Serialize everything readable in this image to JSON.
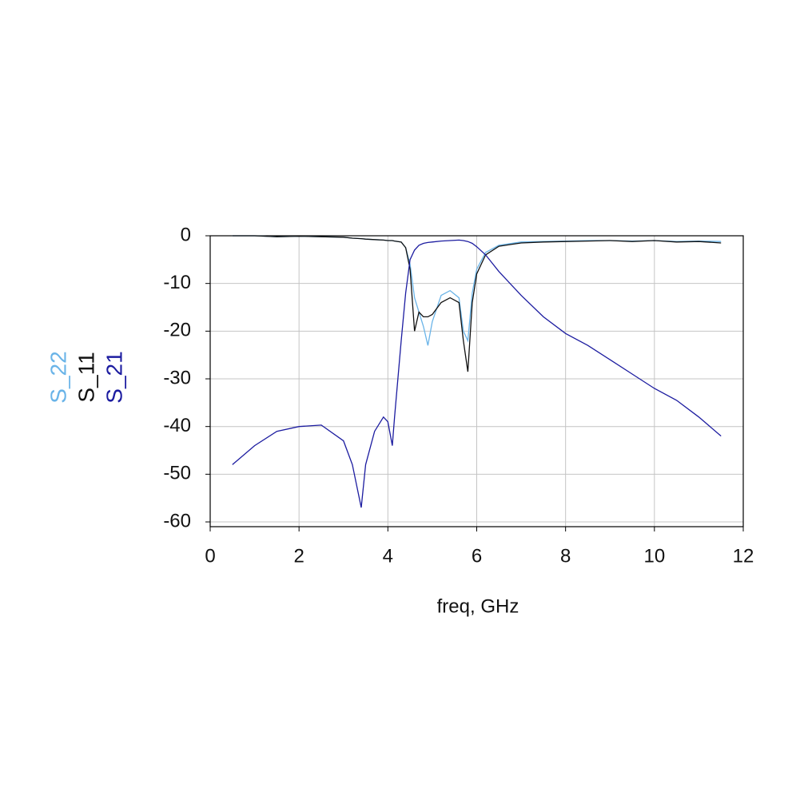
{
  "chart_data": {
    "type": "line",
    "x_label": "freq, GHz",
    "x": [
      0.5,
      1,
      1.5,
      2,
      2.5,
      3,
      3.2,
      3.4,
      3.5,
      3.7,
      3.9,
      4.0,
      4.1,
      4.15,
      4.3,
      4.4,
      4.5,
      4.6,
      4.7,
      4.8,
      4.9,
      5.0,
      5.2,
      5.4,
      5.6,
      5.7,
      5.8,
      5.9,
      6.0,
      6.2,
      6.5,
      7,
      7.5,
      8,
      8.5,
      9,
      9.5,
      10,
      10.5,
      11,
      11.5
    ],
    "series": [
      {
        "name": "S_22",
        "color": "#6ab4e8",
        "values": [
          0,
          0,
          -0.2,
          -0.1,
          -0.2,
          -0.3,
          -0.5,
          -0.6,
          -0.7,
          -0.8,
          -0.9,
          -1,
          -1,
          -1.1,
          -1.3,
          -2.5,
          -6,
          -13,
          -16,
          -19,
          -23,
          -18,
          -12.5,
          -11.5,
          -13,
          -20,
          -22,
          -12,
          -7,
          -3.5,
          -2,
          -1.3,
          -1.2,
          -1.1,
          -1,
          -1,
          -1.1,
          -1,
          -1.2,
          -1.1,
          -1.2
        ]
      },
      {
        "name": "S_11",
        "color": "#111111",
        "values": [
          0,
          0,
          -0.2,
          -0.1,
          -0.2,
          -0.3,
          -0.5,
          -0.6,
          -0.7,
          -0.8,
          -0.9,
          -1,
          -1,
          -1.1,
          -1.3,
          -2.5,
          -7,
          -20,
          -16,
          -17,
          -17,
          -16.5,
          -14,
          -13,
          -14,
          -22,
          -28.5,
          -14,
          -8,
          -4,
          -2.2,
          -1.5,
          -1.3,
          -1.2,
          -1.1,
          -1,
          -1.2,
          -1,
          -1.3,
          -1.2,
          -1.5
        ]
      },
      {
        "name": "S_21",
        "color": "#1c1ca0",
        "values": [
          -48,
          -44,
          -41,
          -40,
          -39.7,
          -43,
          -48,
          -57,
          -48,
          -41,
          -38,
          -39,
          -44,
          -38,
          -22,
          -12,
          -5,
          -3,
          -2,
          -1.6,
          -1.4,
          -1.3,
          -1.1,
          -1,
          -0.9,
          -1,
          -1.2,
          -1.6,
          -2.3,
          -4,
          -7.5,
          -12.5,
          -17,
          -20.5,
          -23,
          -26,
          -29,
          -32,
          -34.5,
          -38,
          -42
        ]
      }
    ],
    "xlim": [
      0,
      12
    ],
    "xticks": [
      0,
      2,
      4,
      6,
      8,
      10,
      12
    ],
    "ylim": [
      -61,
      0
    ],
    "yticks": [
      0,
      -10,
      -20,
      -30,
      -40,
      -50,
      -60
    ],
    "grid": true
  }
}
